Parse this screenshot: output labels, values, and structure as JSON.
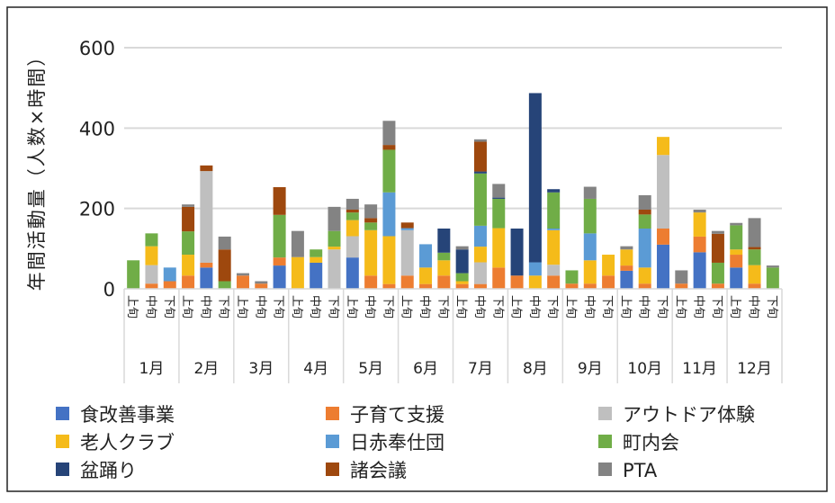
{
  "chart_data": {
    "type": "bar",
    "stacked": true,
    "title": "",
    "xlabel": "",
    "ylabel": "年間活動量（人数×時間）",
    "ylim": [
      0,
      600
    ],
    "yticks": [
      "0",
      "200",
      "400",
      "600"
    ],
    "grid": true,
    "legend_position": "bottom",
    "months": [
      "1月",
      "2月",
      "3月",
      "4月",
      "5月",
      "6月",
      "7月",
      "8月",
      "9月",
      "10月",
      "11月",
      "12月"
    ],
    "periods": [
      "上旬",
      "中旬",
      "下旬"
    ],
    "series": [
      {
        "name": "食改善事業",
        "color": "#4472C4",
        "values": [
          0,
          0,
          0,
          0,
          53,
          0,
          0,
          0,
          58,
          0,
          65,
          0,
          78,
          0,
          0,
          0,
          0,
          0,
          0,
          0,
          0,
          0,
          0,
          0,
          0,
          0,
          0,
          45,
          0,
          110,
          0,
          91,
          0,
          53,
          0,
          0
        ]
      },
      {
        "name": "子育て支援",
        "color": "#ED7D31",
        "values": [
          0,
          13,
          19,
          33,
          12,
          0,
          33,
          13,
          20,
          0,
          0,
          0,
          0,
          33,
          12,
          33,
          12,
          33,
          12,
          12,
          53,
          33,
          0,
          33,
          13,
          13,
          33,
          13,
          13,
          40,
          13,
          39,
          13,
          32,
          13,
          0
        ]
      },
      {
        "name": "アウトドア体験",
        "color": "#BFBFBF",
        "values": [
          0,
          46,
          0,
          0,
          228,
          0,
          0,
          0,
          0,
          0,
          0,
          98,
          53,
          0,
          0,
          113,
          0,
          0,
          0,
          54,
          0,
          0,
          0,
          27,
          0,
          0,
          0,
          0,
          0,
          183,
          0,
          0,
          0,
          0,
          0,
          0
        ]
      },
      {
        "name": "老人クラブ",
        "color": "#F5BB1A",
        "values": [
          0,
          47,
          0,
          52,
          0,
          0,
          0,
          0,
          0,
          79,
          14,
          7,
          40,
          113,
          119,
          0,
          41,
          38,
          7,
          39,
          98,
          0,
          33,
          86,
          0,
          58,
          52,
          40,
          40,
          45,
          0,
          60,
          0,
          13,
          46,
          0
        ]
      },
      {
        "name": "日赤奉仕団",
        "color": "#5B9BD5",
        "values": [
          0,
          0,
          34,
          0,
          0,
          0,
          0,
          0,
          0,
          0,
          0,
          0,
          0,
          0,
          109,
          5,
          58,
          0,
          0,
          52,
          0,
          0,
          33,
          4,
          0,
          67,
          0,
          0,
          97,
          0,
          0,
          0,
          0,
          0,
          0,
          0
        ]
      },
      {
        "name": "町内会",
        "color": "#70AD47",
        "values": [
          71,
          32,
          0,
          58,
          0,
          19,
          0,
          0,
          106,
          0,
          19,
          39,
          19,
          19,
          106,
          0,
          0,
          19,
          20,
          130,
          73,
          0,
          0,
          90,
          33,
          86,
          0,
          0,
          35,
          0,
          0,
          0,
          52,
          60,
          39,
          53
        ]
      },
      {
        "name": "盆踊り",
        "color": "#264478",
        "values": [
          0,
          0,
          0,
          0,
          0,
          0,
          0,
          0,
          0,
          0,
          0,
          0,
          0,
          0,
          0,
          0,
          0,
          60,
          59,
          5,
          3,
          117,
          421,
          8,
          0,
          0,
          0,
          0,
          0,
          0,
          0,
          0,
          0,
          0,
          0,
          0
        ]
      },
      {
        "name": "諸会議",
        "color": "#9E480E",
        "values": [
          0,
          0,
          0,
          61,
          14,
          79,
          0,
          0,
          69,
          0,
          0,
          0,
          7,
          11,
          12,
          14,
          0,
          0,
          0,
          74,
          0,
          0,
          0,
          0,
          0,
          0,
          0,
          0,
          12,
          0,
          0,
          0,
          72,
          0,
          6,
          0
        ]
      },
      {
        "name": "PTA",
        "color": "#838383",
        "values": [
          0,
          0,
          0,
          6,
          0,
          32,
          6,
          6,
          0,
          65,
          0,
          60,
          27,
          34,
          60,
          0,
          0,
          0,
          8,
          6,
          34,
          0,
          0,
          0,
          0,
          30,
          0,
          8,
          36,
          0,
          33,
          7,
          7,
          6,
          72,
          5
        ]
      }
    ]
  }
}
